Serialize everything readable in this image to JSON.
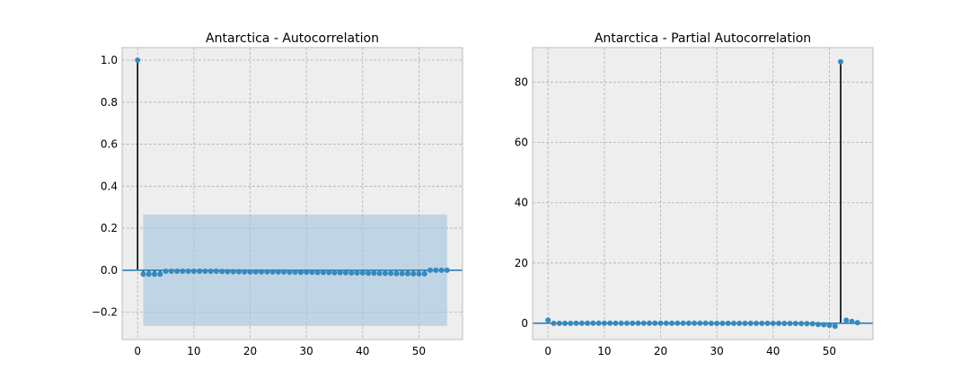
{
  "chart_data": [
    {
      "type": "stem",
      "title": "Antarctica - Autocorrelation",
      "xlim": [
        -2.75,
        57.75
      ],
      "ylim": [
        -0.33,
        1.06
      ],
      "xticks": [
        0,
        10,
        20,
        30,
        40,
        50
      ],
      "yticks": [
        -0.2,
        0.0,
        0.2,
        0.4,
        0.6,
        0.8,
        1.0
      ],
      "ytick_labels": [
        "−0.2",
        "0.0",
        "0.2",
        "0.4",
        "0.6",
        "0.8",
        "1.0"
      ],
      "grid": true,
      "confidence_band": {
        "x_start": 1,
        "x_end": 55,
        "lower": -0.265,
        "upper": 0.265
      },
      "lags": [
        0,
        1,
        2,
        3,
        4,
        5,
        6,
        7,
        8,
        9,
        10,
        11,
        12,
        13,
        14,
        15,
        16,
        17,
        18,
        19,
        20,
        21,
        22,
        23,
        24,
        25,
        26,
        27,
        28,
        29,
        30,
        31,
        32,
        33,
        34,
        35,
        36,
        37,
        38,
        39,
        40,
        41,
        42,
        43,
        44,
        45,
        46,
        47,
        48,
        49,
        50,
        51,
        52,
        53,
        54,
        55
      ],
      "values": [
        1.0,
        -0.019,
        -0.019,
        -0.019,
        -0.019,
        -0.005,
        -0.005,
        -0.005,
        -0.005,
        -0.005,
        -0.005,
        -0.005,
        -0.005,
        -0.005,
        -0.005,
        -0.006,
        -0.007,
        -0.007,
        -0.007,
        -0.008,
        -0.008,
        -0.008,
        -0.008,
        -0.008,
        -0.008,
        -0.008,
        -0.008,
        -0.009,
        -0.009,
        -0.01,
        -0.01,
        -0.01,
        -0.011,
        -0.011,
        -0.011,
        -0.012,
        -0.012,
        -0.012,
        -0.013,
        -0.013,
        -0.013,
        -0.014,
        -0.014,
        -0.015,
        -0.015,
        -0.015,
        -0.016,
        -0.016,
        -0.016,
        -0.017,
        -0.017,
        -0.017,
        0.0,
        0.0,
        0.0,
        0.0
      ]
    },
    {
      "type": "stem",
      "title": "Antarctica - Partial Autocorrelation",
      "xlim": [
        -2.75,
        57.75
      ],
      "ylim": [
        -5.4,
        91.5
      ],
      "xticks": [
        0,
        10,
        20,
        30,
        40,
        50
      ],
      "yticks": [
        0,
        20,
        40,
        60,
        80
      ],
      "ytick_labels": [
        "0",
        "20",
        "40",
        "60",
        "80"
      ],
      "grid": true,
      "confidence_band": {
        "x_start": 1,
        "x_end": 55,
        "lower": -0.265,
        "upper": 0.265
      },
      "lags": [
        0,
        1,
        2,
        3,
        4,
        5,
        6,
        7,
        8,
        9,
        10,
        11,
        12,
        13,
        14,
        15,
        16,
        17,
        18,
        19,
        20,
        21,
        22,
        23,
        24,
        25,
        26,
        27,
        28,
        29,
        30,
        31,
        32,
        33,
        34,
        35,
        36,
        37,
        38,
        39,
        40,
        41,
        42,
        43,
        44,
        45,
        46,
        47,
        48,
        49,
        50,
        51,
        52,
        53,
        54,
        55
      ],
      "values": [
        1.0,
        -0.02,
        -0.02,
        -0.02,
        -0.02,
        -0.01,
        -0.01,
        -0.01,
        -0.01,
        -0.01,
        -0.01,
        -0.01,
        -0.01,
        -0.01,
        -0.01,
        -0.01,
        -0.01,
        -0.01,
        -0.01,
        -0.01,
        -0.01,
        -0.01,
        -0.01,
        -0.01,
        -0.01,
        -0.01,
        -0.01,
        -0.01,
        -0.01,
        -0.02,
        -0.02,
        -0.02,
        -0.02,
        -0.02,
        -0.02,
        -0.02,
        -0.03,
        -0.03,
        -0.04,
        -0.04,
        -0.05,
        -0.05,
        -0.06,
        -0.07,
        -0.08,
        -0.1,
        -0.15,
        -0.2,
        -0.4,
        -0.5,
        -0.7,
        -1.0,
        86.8,
        1.0,
        0.6,
        0.2
      ]
    }
  ],
  "colors": {
    "background": "#ffffff",
    "plot_background": "#eeeeee",
    "grid": "#b0b0b0",
    "frame": "#bcbcbc",
    "stem": "#000000",
    "marker": "#348abd",
    "zero_line": "#348abd",
    "band": "#a6c6df"
  }
}
